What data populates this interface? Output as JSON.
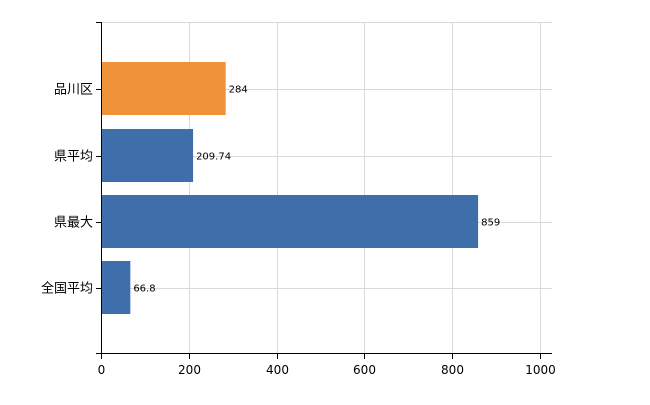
{
  "chart_data": {
    "type": "bar",
    "orientation": "horizontal",
    "categories": [
      "品川区",
      "県平均",
      "県最大",
      "全国平均"
    ],
    "values": [
      284,
      209.74,
      859,
      66.8
    ],
    "value_labels": [
      "284",
      "209.74",
      "859",
      "66.8"
    ],
    "bar_colors": [
      "#f0923a",
      "#3f6fab",
      "#3f6fab",
      "#3f6fab"
    ],
    "title": "",
    "xlabel": "",
    "ylabel": "",
    "xlim": [
      0,
      1000
    ],
    "xticks": [
      0,
      200,
      400,
      600,
      800,
      1000
    ],
    "xtick_labels": [
      "0",
      "200",
      "400",
      "600",
      "800",
      "1000"
    ],
    "grid": true,
    "legend": "none"
  }
}
